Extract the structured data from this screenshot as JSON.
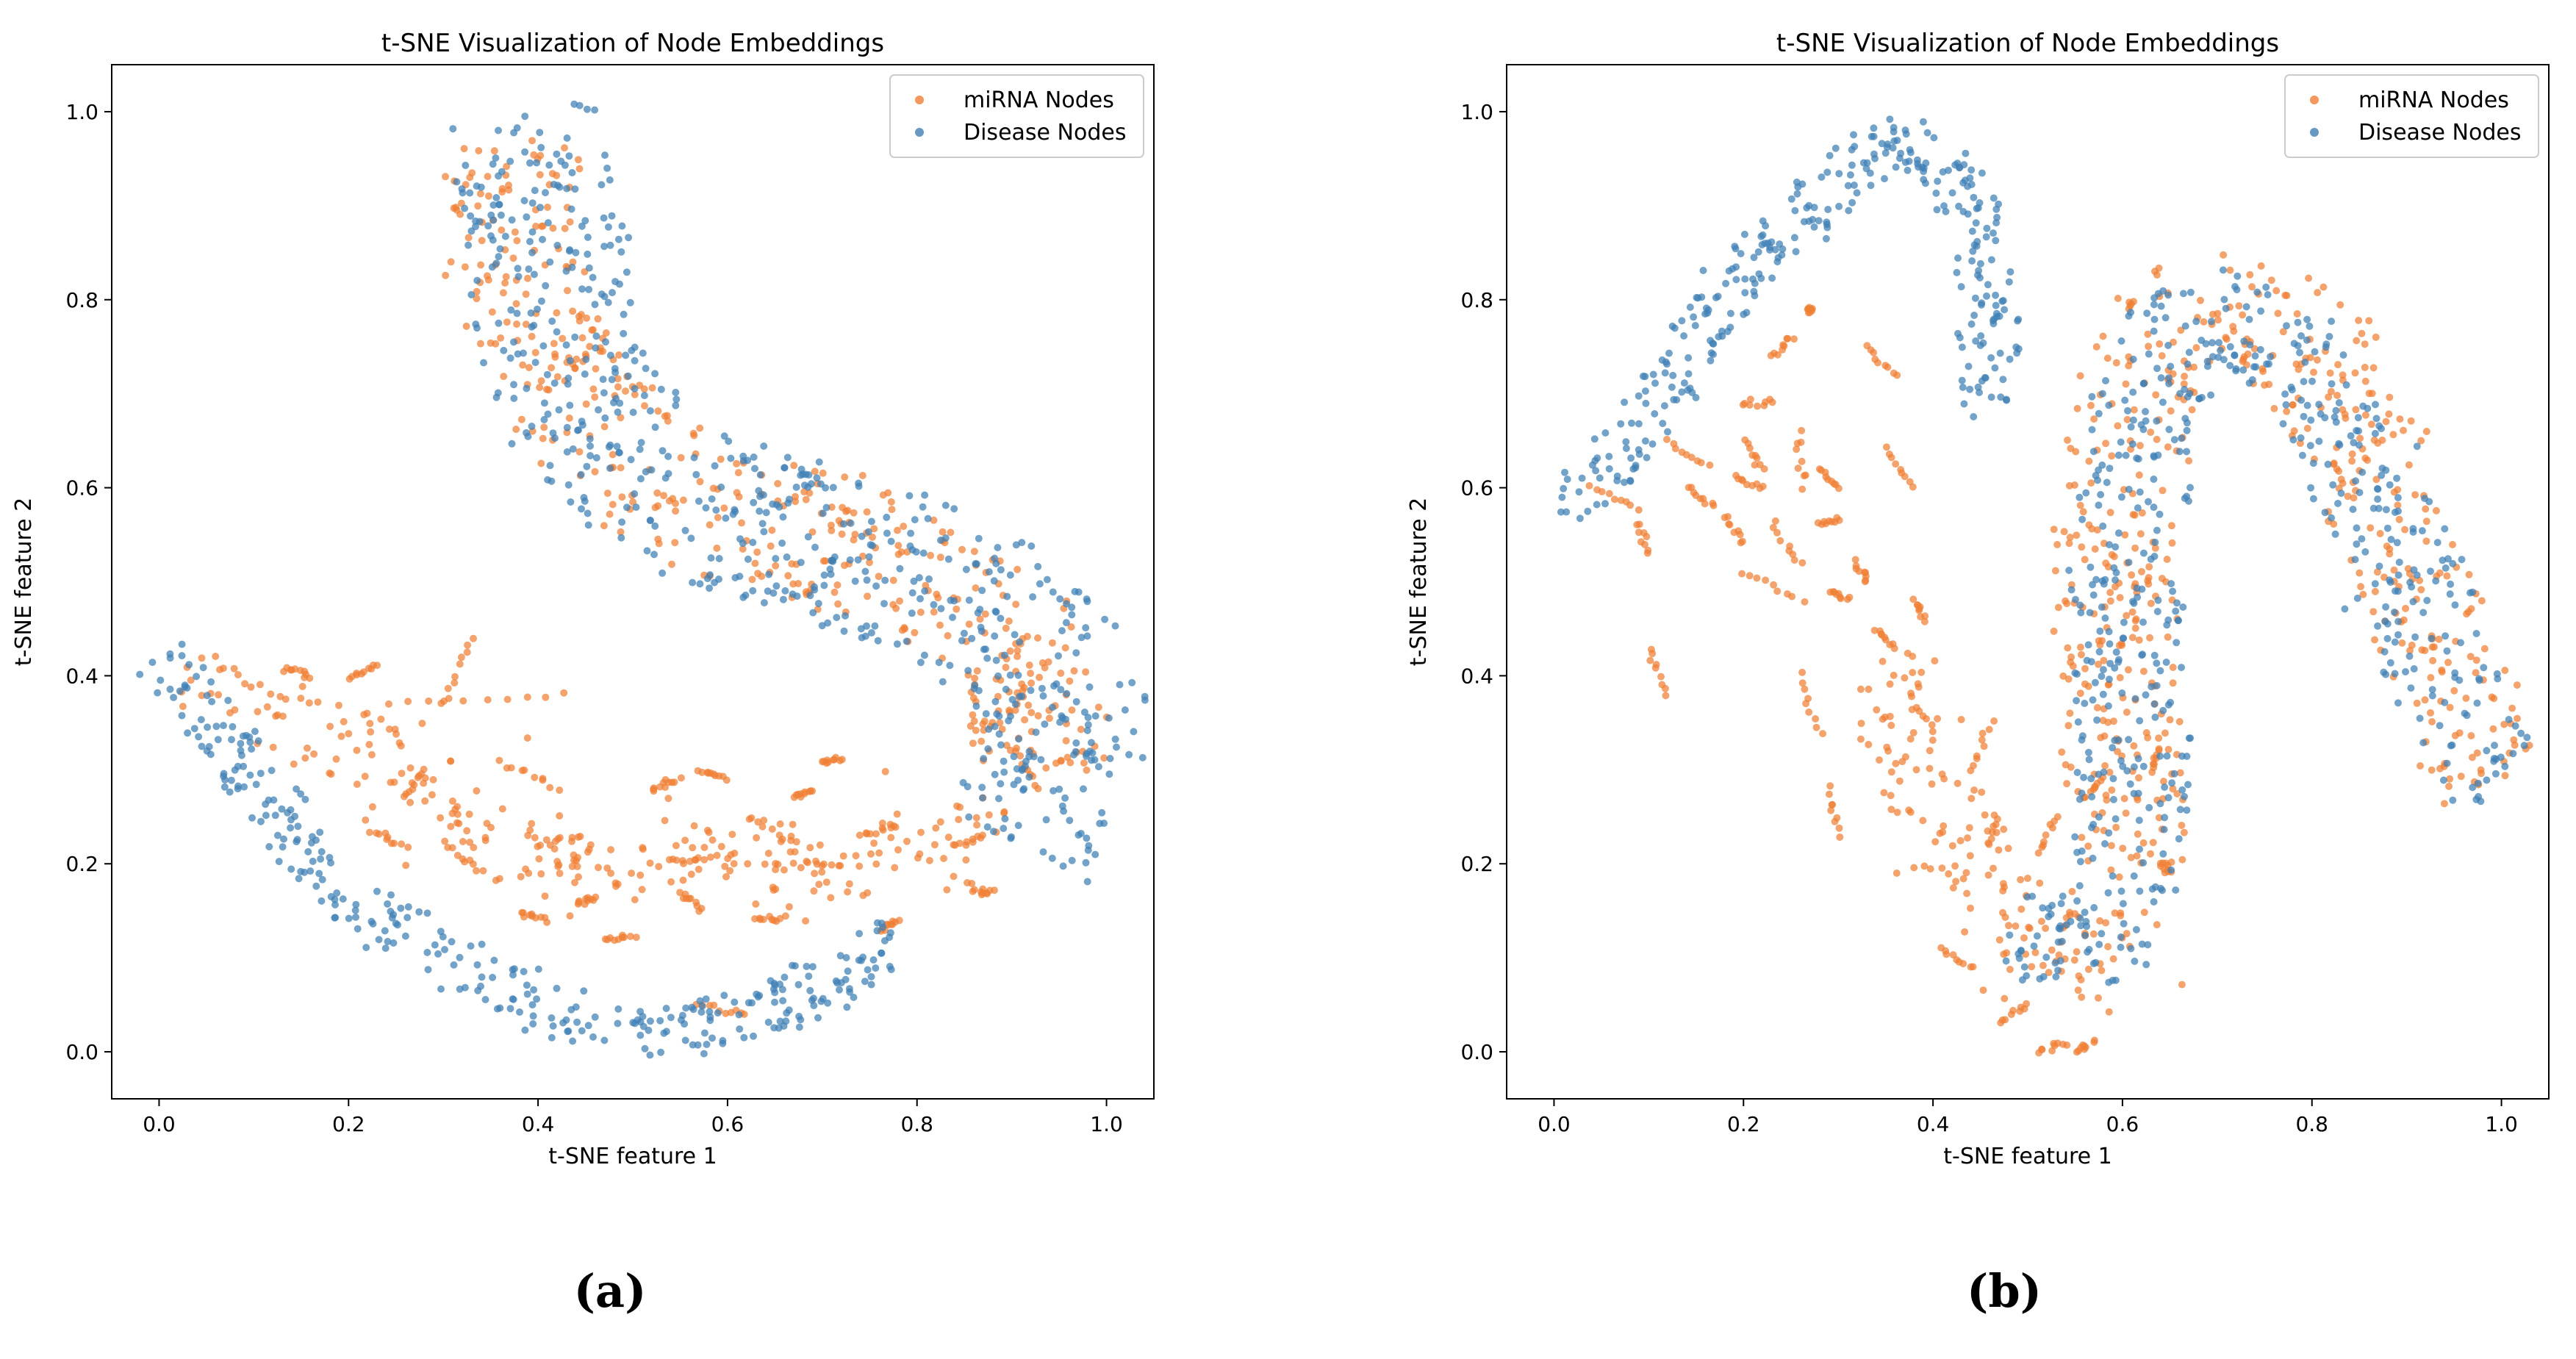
{
  "colors": {
    "mirna": "#f07f35",
    "disease": "#3e7fb5"
  },
  "chart_data": [
    {
      "id": "a",
      "type": "scatter",
      "title": "t-SNE Visualization of Node Embeddings",
      "xlabel": "t-SNE feature 1",
      "ylabel": "t-SNE feature 2",
      "xlim": [
        -0.05,
        1.05
      ],
      "ylim": [
        -0.05,
        1.05
      ],
      "xticks": [
        0.0,
        0.2,
        0.4,
        0.6,
        0.8,
        1.0
      ],
      "yticks": [
        0.0,
        0.2,
        0.4,
        0.6,
        0.8,
        1.0
      ],
      "tick_labels": [
        "0.0",
        "0.2",
        "0.4",
        "0.6",
        "0.8",
        "1.0"
      ],
      "legend_position": "top-right",
      "caption": "(a)",
      "series": [
        {
          "name": "miRNA Nodes",
          "color_key": "mirna",
          "structure": [
            {
              "kind": "band",
              "path": [
                [
                  0.38,
                  0.97
                ],
                [
                  0.37,
                  0.88
                ],
                [
                  0.38,
                  0.8
                ],
                [
                  0.42,
                  0.72
                ],
                [
                  0.5,
                  0.63
                ],
                [
                  0.58,
                  0.57
                ],
                [
                  0.7,
                  0.55
                ],
                [
                  0.82,
                  0.5
                ],
                [
                  0.9,
                  0.45
                ],
                [
                  0.94,
                  0.38
                ],
                [
                  0.93,
                  0.3
                ]
              ],
              "width": 0.07,
              "count": 420
            },
            {
              "kind": "cluster",
              "path": [
                [
                  0.03,
                  0.4
                ],
                [
                  0.1,
                  0.38
                ],
                [
                  0.2,
                  0.34
                ],
                [
                  0.28,
                  0.28
                ],
                [
                  0.34,
                  0.22
                ],
                [
                  0.45,
                  0.2
                ],
                [
                  0.55,
                  0.21
                ],
                [
                  0.7,
                  0.2
                ],
                [
                  0.8,
                  0.21
                ],
                [
                  0.88,
                  0.27
                ]
              ],
              "width": 0.05,
              "count": 240
            },
            {
              "kind": "strokes",
              "points": [
                [
                  0.33,
                  0.44,
                  0.3,
                  0.37
                ],
                [
                  0.24,
                  0.37,
                  0.43,
                  0.38
                ],
                [
                  0.13,
                  0.41,
                  0.16,
                  0.4
                ],
                [
                  0.2,
                  0.4,
                  0.23,
                  0.41
                ],
                [
                  0.36,
                  0.31,
                  0.42,
                  0.28
                ],
                [
                  0.52,
                  0.28,
                  0.55,
                  0.29
                ],
                [
                  0.57,
                  0.3,
                  0.6,
                  0.29
                ],
                [
                  0.67,
                  0.27,
                  0.69,
                  0.28
                ],
                [
                  0.7,
                  0.31,
                  0.72,
                  0.31
                ],
                [
                  0.47,
                  0.12,
                  0.5,
                  0.12
                ],
                [
                  0.52,
                  0.2,
                  0.6,
                  0.21
                ],
                [
                  0.64,
                  0.2,
                  0.72,
                  0.2
                ],
                [
                  0.38,
                  0.15,
                  0.41,
                  0.14
                ],
                [
                  0.44,
                  0.16,
                  0.46,
                  0.16
                ],
                [
                  0.55,
                  0.17,
                  0.57,
                  0.15
                ],
                [
                  0.63,
                  0.14,
                  0.66,
                  0.14
                ],
                [
                  0.76,
                  0.13,
                  0.78,
                  0.14
                ],
                [
                  0.57,
                  0.05,
                  0.62,
                  0.04
                ],
                [
                  0.86,
                  0.17,
                  0.88,
                  0.17
                ],
                [
                  0.84,
                  0.22,
                  0.87,
                  0.23
                ],
                [
                  0.62,
                  0.25,
                  0.68,
                  0.22
                ],
                [
                  0.74,
                  0.23,
                  0.78,
                  0.24
                ],
                [
                  0.9,
                  0.32,
                  0.93,
                  0.28
                ],
                [
                  0.86,
                  0.4,
                  0.86,
                  0.33
                ],
                [
                  0.9,
                  0.36,
                  0.92,
                  0.4
                ],
                [
                  0.3,
                  0.22,
                  0.34,
                  0.19
                ],
                [
                  0.4,
                  0.22,
                  0.44,
                  0.23
                ],
                [
                  0.26,
                  0.27,
                  0.28,
                  0.3
                ],
                [
                  0.22,
                  0.24,
                  0.26,
                  0.22
                ]
              ],
              "count_per_stroke": 10
            }
          ]
        },
        {
          "name": "Disease Nodes",
          "color_key": "disease",
          "structure": [
            {
              "kind": "band",
              "path": [
                [
                  0.38,
                  1.0
                ],
                [
                  0.41,
                  0.9
                ],
                [
                  0.41,
                  0.8
                ],
                [
                  0.43,
                  0.71
                ],
                [
                  0.5,
                  0.63
                ],
                [
                  0.58,
                  0.57
                ],
                [
                  0.7,
                  0.54
                ],
                [
                  0.82,
                  0.5
                ],
                [
                  0.9,
                  0.45
                ],
                [
                  0.96,
                  0.4
                ],
                [
                  0.95,
                  0.3
                ],
                [
                  0.9,
                  0.22
                ]
              ],
              "width": 0.085,
              "count": 600
            },
            {
              "kind": "band",
              "path": [
                [
                  0.0,
                  0.42
                ],
                [
                  0.05,
                  0.37
                ],
                [
                  0.1,
                  0.29
                ],
                [
                  0.15,
                  0.21
                ],
                [
                  0.22,
                  0.15
                ],
                [
                  0.32,
                  0.09
                ],
                [
                  0.42,
                  0.04
                ],
                [
                  0.5,
                  0.02
                ],
                [
                  0.58,
                  0.03
                ],
                [
                  0.66,
                  0.05
                ],
                [
                  0.72,
                  0.08
                ],
                [
                  0.78,
                  0.12
                ]
              ],
              "width": 0.028,
              "count": 320
            }
          ]
        }
      ]
    },
    {
      "id": "b",
      "type": "scatter",
      "title": "t-SNE Visualization of Node Embeddings",
      "xlabel": "t-SNE feature 1",
      "ylabel": "t-SNE feature 2",
      "xlim": [
        -0.05,
        1.05
      ],
      "ylim": [
        -0.05,
        1.05
      ],
      "xticks": [
        0.0,
        0.2,
        0.4,
        0.6,
        0.8,
        1.0
      ],
      "yticks": [
        0.0,
        0.2,
        0.4,
        0.6,
        0.8,
        1.0
      ],
      "tick_labels": [
        "0.0",
        "0.2",
        "0.4",
        "0.6",
        "0.8",
        "1.0"
      ],
      "legend_position": "top-right",
      "caption": "(b)",
      "series": [
        {
          "name": "miRNA Nodes",
          "color_key": "mirna",
          "structure": [
            {
              "kind": "band",
              "path": [
                [
                  0.6,
                  0.2
                ],
                [
                  0.6,
                  0.35
                ],
                [
                  0.59,
                  0.5
                ],
                [
                  0.6,
                  0.65
                ],
                [
                  0.63,
                  0.75
                ],
                [
                  0.69,
                  0.8
                ],
                [
                  0.76,
                  0.78
                ],
                [
                  0.82,
                  0.72
                ],
                [
                  0.87,
                  0.6
                ],
                [
                  0.91,
                  0.48
                ],
                [
                  0.95,
                  0.38
                ],
                [
                  0.99,
                  0.29
                ]
              ],
              "width": 0.065,
              "count": 500
            },
            {
              "kind": "cluster",
              "path": [
                [
                  0.34,
                  0.42
                ],
                [
                  0.38,
                  0.3
                ],
                [
                  0.42,
                  0.21
                ],
                [
                  0.47,
                  0.15
                ],
                [
                  0.53,
                  0.09
                ],
                [
                  0.58,
                  0.11
                ],
                [
                  0.62,
                  0.17
                ]
              ],
              "width": 0.06,
              "count": 160
            },
            {
              "kind": "strokes",
              "points": [
                [
                  0.04,
                  0.6,
                  0.09,
                  0.58
                ],
                [
                  0.09,
                  0.56,
                  0.1,
                  0.53
                ],
                [
                  0.1,
                  0.43,
                  0.12,
                  0.38
                ],
                [
                  0.12,
                  0.65,
                  0.16,
                  0.62
                ],
                [
                  0.14,
                  0.6,
                  0.17,
                  0.58
                ],
                [
                  0.18,
                  0.57,
                  0.2,
                  0.54
                ],
                [
                  0.19,
                  0.61,
                  0.22,
                  0.6
                ],
                [
                  0.2,
                  0.69,
                  0.23,
                  0.69
                ],
                [
                  0.2,
                  0.65,
                  0.22,
                  0.62
                ],
                [
                  0.2,
                  0.51,
                  0.26,
                  0.48
                ],
                [
                  0.23,
                  0.56,
                  0.26,
                  0.52
                ],
                [
                  0.23,
                  0.74,
                  0.25,
                  0.76
                ],
                [
                  0.27,
                  0.79,
                  0.27,
                  0.79
                ],
                [
                  0.26,
                  0.66,
                  0.26,
                  0.6
                ],
                [
                  0.28,
                  0.62,
                  0.3,
                  0.6
                ],
                [
                  0.28,
                  0.56,
                  0.3,
                  0.57
                ],
                [
                  0.29,
                  0.49,
                  0.31,
                  0.48
                ],
                [
                  0.33,
                  0.75,
                  0.36,
                  0.72
                ],
                [
                  0.35,
                  0.64,
                  0.38,
                  0.6
                ],
                [
                  0.26,
                  0.4,
                  0.28,
                  0.34
                ],
                [
                  0.29,
                  0.28,
                  0.3,
                  0.23
                ],
                [
                  0.32,
                  0.52,
                  0.33,
                  0.5
                ],
                [
                  0.34,
                  0.45,
                  0.36,
                  0.43
                ],
                [
                  0.38,
                  0.48,
                  0.39,
                  0.46
                ],
                [
                  0.41,
                  0.11,
                  0.44,
                  0.09
                ],
                [
                  0.47,
                  0.03,
                  0.5,
                  0.05
                ],
                [
                  0.51,
                  0.0,
                  0.54,
                  0.01
                ],
                [
                  0.55,
                  0.0,
                  0.57,
                  0.01
                ],
                [
                  0.51,
                  0.21,
                  0.53,
                  0.25
                ],
                [
                  0.56,
                  0.27,
                  0.58,
                  0.29
                ],
                [
                  0.64,
                  0.2,
                  0.65,
                  0.19
                ],
                [
                  0.63,
                  0.3,
                  0.64,
                  0.32
                ],
                [
                  0.44,
                  0.3,
                  0.46,
                  0.35
                ],
                [
                  0.46,
                  0.22,
                  0.47,
                  0.25
                ]
              ],
              "count_per_stroke": 9
            }
          ]
        },
        {
          "name": "Disease Nodes",
          "color_key": "disease",
          "structure": [
            {
              "kind": "band",
              "path": [
                [
                  0.0,
                  0.59
                ],
                [
                  0.05,
                  0.61
                ],
                [
                  0.1,
                  0.67
                ],
                [
                  0.15,
                  0.76
                ],
                [
                  0.2,
                  0.83
                ],
                [
                  0.26,
                  0.89
                ],
                [
                  0.32,
                  0.94
                ],
                [
                  0.37,
                  0.97
                ],
                [
                  0.41,
                  0.95
                ],
                [
                  0.45,
                  0.88
                ],
                [
                  0.46,
                  0.78
                ],
                [
                  0.46,
                  0.68
                ]
              ],
              "width": 0.03,
              "count": 320
            },
            {
              "kind": "band",
              "path": [
                [
                  0.49,
                  0.14
                ],
                [
                  0.55,
                  0.11
                ],
                [
                  0.6,
                  0.16
                ],
                [
                  0.61,
                  0.27
                ],
                [
                  0.61,
                  0.4
                ],
                [
                  0.6,
                  0.5
                ],
                [
                  0.61,
                  0.62
                ],
                [
                  0.63,
                  0.72
                ],
                [
                  0.69,
                  0.78
                ],
                [
                  0.75,
                  0.77
                ],
                [
                  0.81,
                  0.7
                ],
                [
                  0.86,
                  0.6
                ],
                [
                  0.9,
                  0.5
                ],
                [
                  0.94,
                  0.4
                ],
                [
                  0.98,
                  0.3
                ],
                [
                  1.0,
                  0.28
                ]
              ],
              "width": 0.06,
              "count": 560
            }
          ]
        }
      ]
    }
  ]
}
